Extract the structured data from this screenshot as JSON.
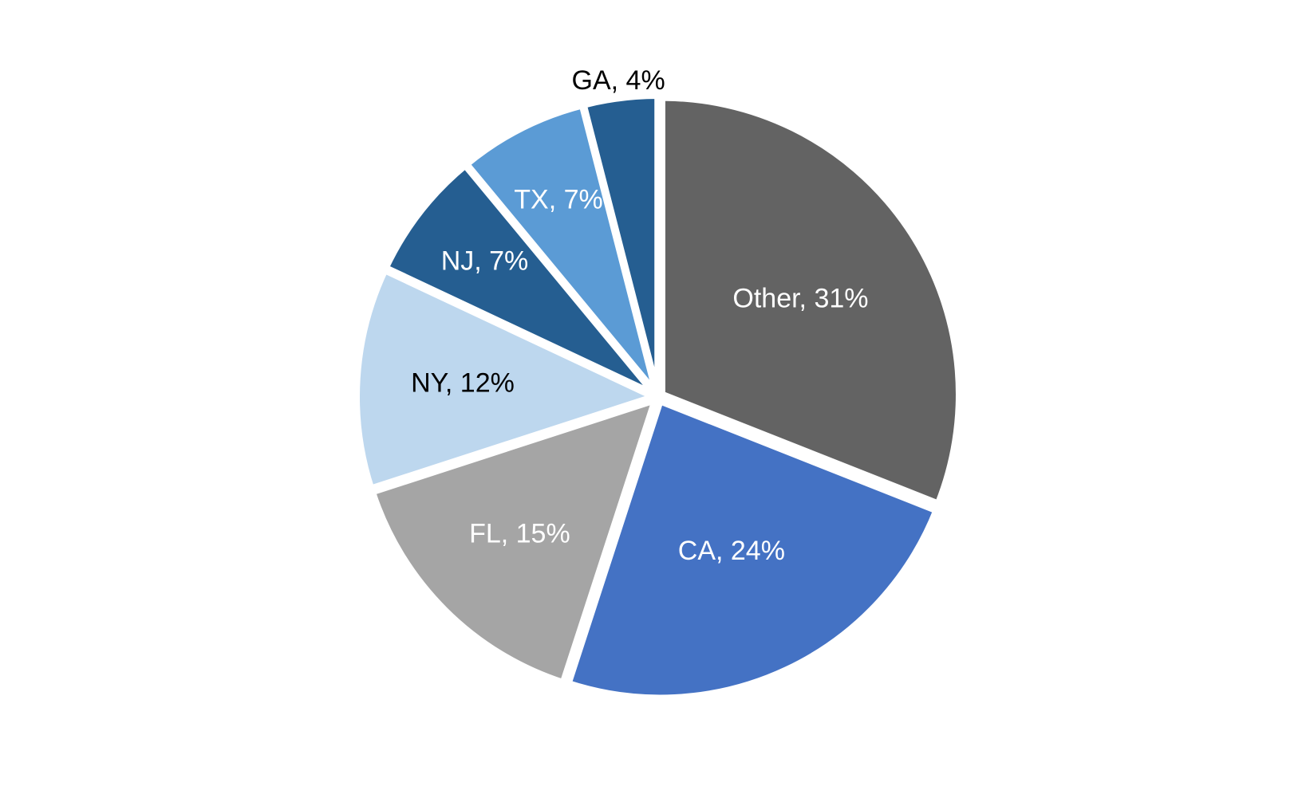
{
  "chart_data": {
    "type": "pie",
    "title": "",
    "start": "12 o'clock",
    "direction": "clockwise",
    "slices": [
      {
        "label": "Other",
        "value": 31,
        "data_label": "Other, 31%",
        "color": "#636363",
        "label_color": "#ffffff"
      },
      {
        "label": "CA",
        "value": 24,
        "data_label": "CA, 24%",
        "color": "#4472c4",
        "label_color": "#ffffff"
      },
      {
        "label": "FL",
        "value": 15,
        "data_label": "FL, 15%",
        "color": "#a5a5a5",
        "label_color": "#ffffff"
      },
      {
        "label": "NY",
        "value": 12,
        "data_label": "NY, 12%",
        "color": "#bdd7ee",
        "label_color": "#000000"
      },
      {
        "label": "NJ",
        "value": 7,
        "data_label": "NJ, 7%",
        "color": "#255e91",
        "label_color": "#ffffff"
      },
      {
        "label": "TX",
        "value": 7,
        "data_label": "TX, 7%",
        "color": "#5b9bd5",
        "label_color": "#ffffff"
      },
      {
        "label": "GA",
        "value": 4,
        "data_label": "GA, 4%",
        "color": "#255e91",
        "label_color": "#000000"
      }
    ]
  }
}
